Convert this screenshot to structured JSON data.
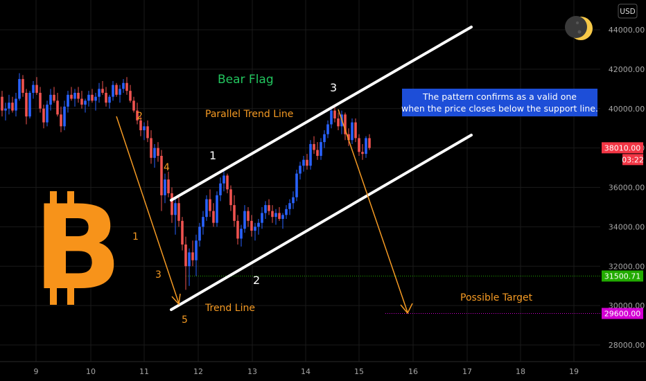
{
  "currency_button": "USD",
  "chart_data": {
    "type": "candlestick",
    "title": "Bear Flag",
    "x_ticks": [
      "9",
      "10",
      "11",
      "12",
      "13",
      "14",
      "15",
      "16",
      "17",
      "18",
      "19"
    ],
    "y_ticks": [
      28000,
      30000,
      32000,
      34000,
      36000,
      38000,
      40000,
      42000,
      44000
    ],
    "y_tick_labels": [
      "28000.00",
      "30000.00",
      "32000.00",
      "34000.00",
      "36000.00",
      "38000.00",
      "40000.00",
      "42000.00",
      "44000.00"
    ],
    "ylim": [
      27000,
      45200
    ],
    "price_tags": [
      {
        "label": "38010.00",
        "sub": "03:22",
        "color": "#f23645",
        "value": 38010
      },
      {
        "label": "31500.71",
        "color": "#22ab00",
        "value": 31500.71
      },
      {
        "label": "29600.00",
        "color": "#d400d4",
        "value": 29600
      }
    ],
    "horizontal_levels": [
      {
        "value": 31500.71,
        "color": "#22ab00",
        "style": "dotted"
      },
      {
        "value": 29600,
        "color": "#d400d4",
        "style": "dotted"
      }
    ],
    "candles": [
      [
        40600,
        40900,
        39600,
        39900
      ],
      [
        39900,
        40300,
        39400,
        40000
      ],
      [
        40000,
        40700,
        39700,
        40300
      ],
      [
        40300,
        40600,
        39800,
        39900
      ],
      [
        39900,
        40800,
        39600,
        40500
      ],
      [
        40500,
        41800,
        40400,
        41500
      ],
      [
        41500,
        41700,
        40600,
        40800
      ],
      [
        40800,
        41000,
        39200,
        39600
      ],
      [
        39600,
        40900,
        39500,
        40800
      ],
      [
        40800,
        41400,
        40500,
        41200
      ],
      [
        41200,
        41600,
        40700,
        40800
      ],
      [
        40800,
        41100,
        39800,
        40000
      ],
      [
        40000,
        40200,
        39000,
        39300
      ],
      [
        39300,
        40400,
        39100,
        40200
      ],
      [
        40200,
        41000,
        39900,
        40700
      ],
      [
        40700,
        41100,
        40300,
        40400
      ],
      [
        40400,
        40800,
        39600,
        39700
      ],
      [
        39700,
        40100,
        38800,
        39100
      ],
      [
        39100,
        40400,
        38900,
        40100
      ],
      [
        40100,
        40900,
        39800,
        40700
      ],
      [
        40700,
        41100,
        40400,
        40500
      ],
      [
        40500,
        41000,
        40100,
        40800
      ],
      [
        40800,
        41100,
        40300,
        40500
      ],
      [
        40500,
        40900,
        40000,
        40200
      ],
      [
        40200,
        40500,
        39800,
        40400
      ],
      [
        40400,
        40900,
        40100,
        40700
      ],
      [
        40700,
        41000,
        40300,
        40400
      ],
      [
        40400,
        40800,
        39900,
        40600
      ],
      [
        40600,
        41300,
        40300,
        41000
      ],
      [
        41000,
        41400,
        40700,
        40800
      ],
      [
        40800,
        41100,
        40100,
        40300
      ],
      [
        40300,
        40700,
        40000,
        40600
      ],
      [
        40600,
        41400,
        40400,
        41200
      ],
      [
        41200,
        41300,
        40600,
        40700
      ],
      [
        40700,
        41200,
        40300,
        41000
      ],
      [
        41000,
        41500,
        40800,
        41300
      ],
      [
        41300,
        41600,
        40700,
        40900
      ],
      [
        40900,
        41200,
        40300,
        40400
      ],
      [
        40400,
        40600,
        39800,
        39900
      ],
      [
        39900,
        40300,
        39200,
        39400
      ],
      [
        39400,
        39600,
        38600,
        38900
      ],
      [
        38900,
        39300,
        38400,
        39100
      ],
      [
        39100,
        39400,
        38300,
        38500
      ],
      [
        38500,
        38900,
        37200,
        37500
      ],
      [
        37500,
        38200,
        37000,
        38000
      ],
      [
        38000,
        38300,
        37300,
        37600
      ],
      [
        37600,
        37900,
        34800,
        35600
      ],
      [
        35600,
        36700,
        35200,
        36400
      ],
      [
        36400,
        36800,
        35500,
        35700
      ],
      [
        35700,
        36000,
        34200,
        34600
      ],
      [
        34600,
        35400,
        33600,
        35200
      ],
      [
        35200,
        35500,
        34000,
        34300
      ],
      [
        34300,
        34500,
        32800,
        33100
      ],
      [
        33100,
        33500,
        30800,
        32000
      ],
      [
        32000,
        32900,
        31000,
        32700
      ],
      [
        32700,
        33300,
        32000,
        32300
      ],
      [
        32300,
        33600,
        31500,
        33300
      ],
      [
        33300,
        34200,
        33000,
        34000
      ],
      [
        34000,
        34800,
        33600,
        34500
      ],
      [
        34500,
        35600,
        34300,
        35400
      ],
      [
        35400,
        35900,
        34500,
        34800
      ],
      [
        34800,
        35200,
        34000,
        34200
      ],
      [
        34200,
        35800,
        34000,
        35600
      ],
      [
        35600,
        36500,
        35300,
        36200
      ],
      [
        36200,
        36900,
        35800,
        36600
      ],
      [
        36600,
        36700,
        35700,
        35900
      ],
      [
        35900,
        36100,
        34800,
        35100
      ],
      [
        35100,
        35600,
        34000,
        34300
      ],
      [
        34300,
        34600,
        33100,
        33400
      ],
      [
        33400,
        34100,
        33000,
        33900
      ],
      [
        33900,
        35100,
        33700,
        34800
      ],
      [
        34800,
        35000,
        34000,
        34300
      ],
      [
        34300,
        34600,
        33500,
        33800
      ],
      [
        33800,
        34200,
        33300,
        34000
      ],
      [
        34000,
        34400,
        33600,
        34200
      ],
      [
        34200,
        35000,
        33900,
        34700
      ],
      [
        34700,
        35300,
        34400,
        35100
      ],
      [
        35100,
        35400,
        34600,
        34800
      ],
      [
        34800,
        35100,
        34200,
        34500
      ],
      [
        34500,
        34900,
        34100,
        34700
      ],
      [
        34700,
        35000,
        34300,
        34400
      ],
      [
        34400,
        34700,
        33900,
        34600
      ],
      [
        34600,
        35100,
        34400,
        34900
      ],
      [
        34900,
        35400,
        34600,
        35200
      ],
      [
        35200,
        35800,
        34900,
        35500
      ],
      [
        35500,
        36900,
        35300,
        36700
      ],
      [
        36700,
        37300,
        36400,
        37100
      ],
      [
        37100,
        37600,
        36800,
        37400
      ],
      [
        37400,
        37700,
        36900,
        37100
      ],
      [
        37100,
        38400,
        36900,
        38200
      ],
      [
        38200,
        38600,
        37700,
        37900
      ],
      [
        37900,
        38300,
        37400,
        37600
      ],
      [
        37600,
        38500,
        37400,
        38300
      ],
      [
        38300,
        38900,
        38000,
        38700
      ],
      [
        38700,
        39400,
        38500,
        39200
      ],
      [
        39200,
        40100,
        39000,
        39900
      ],
      [
        39900,
        40200,
        39300,
        39500
      ],
      [
        39500,
        39800,
        38900,
        39100
      ],
      [
        39100,
        39900,
        38700,
        39700
      ],
      [
        39700,
        39800,
        38400,
        38700
      ],
      [
        38700,
        39000,
        38100,
        38400
      ],
      [
        38400,
        39500,
        38200,
        39300
      ],
      [
        39300,
        39500,
        38300,
        38500
      ],
      [
        38500,
        38700,
        37600,
        37800
      ],
      [
        37800,
        38200,
        37400,
        37700
      ],
      [
        37700,
        38600,
        37500,
        38500
      ],
      [
        38500,
        38700,
        37900,
        38000
      ]
    ],
    "annotations": [
      {
        "text": "Bear Flag",
        "color": "#22c55e"
      },
      {
        "text": "Parallel Trend Line",
        "color": "#f59a23"
      },
      {
        "text": "Trend Line",
        "color": "#f59a23"
      },
      {
        "text": "Possible Target",
        "color": "#f59a23"
      },
      {
        "text": "2",
        "color": "#f59a23"
      },
      {
        "text": "4",
        "color": "#f59a23"
      },
      {
        "text": "1",
        "color": "#f59a23"
      },
      {
        "text": "3",
        "color": "#f59a23"
      },
      {
        "text": "5",
        "color": "#f59a23"
      },
      {
        "text": "1",
        "color": "#ffffff"
      },
      {
        "text": "2",
        "color": "#ffffff"
      },
      {
        "text": "3",
        "color": "#ffffff"
      }
    ],
    "callout": {
      "lines": [
        "The pattern confirms as a valid one",
        "when the price closes below the support line."
      ],
      "bg": "#1d4ed8",
      "color": "#ffffff"
    },
    "colors": {
      "up": "#2962ff",
      "down": "#ef5350",
      "background": "#000000",
      "grid": "#1a1a1a",
      "trend": "#ffffff",
      "arrow": "#f59a23",
      "logo": "#f7931a"
    }
  }
}
